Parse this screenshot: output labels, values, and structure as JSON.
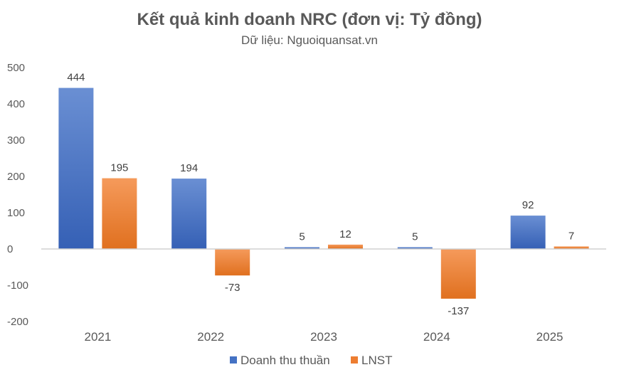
{
  "chart_data": {
    "type": "bar",
    "title": "Kết quả kinh doanh NRC (đơn vị: Tỷ đồng)",
    "subtitle": "Dữ liệu: Nguoiquansat.vn",
    "categories": [
      "2021",
      "2022",
      "2023",
      "2024",
      "2025"
    ],
    "series": [
      {
        "name": "Doanh thu thuần",
        "values": [
          444,
          194,
          5,
          5,
          92
        ],
        "color": "#4472C4"
      },
      {
        "name": "LNST",
        "values": [
          195,
          -73,
          12,
          -137,
          7
        ],
        "color": "#ED7D31"
      }
    ],
    "ylim": [
      -200,
      500
    ],
    "yticks": [
      500,
      400,
      300,
      200,
      100,
      0,
      -100,
      -200
    ],
    "grid": false,
    "legend": "bottom"
  }
}
